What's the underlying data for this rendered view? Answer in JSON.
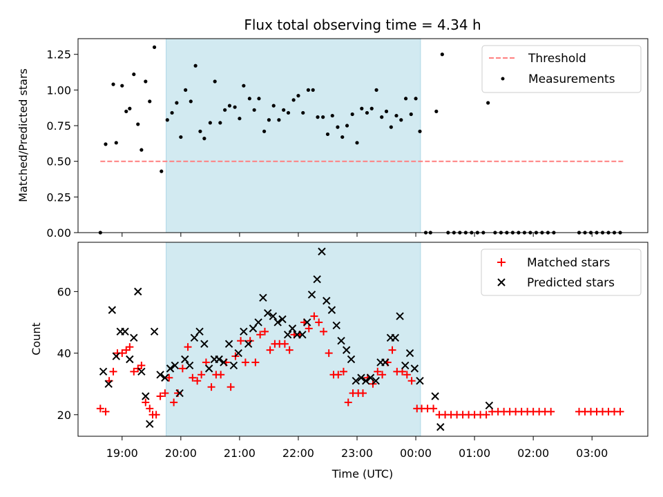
{
  "figure": {
    "title": "Flux total observing time = 4.34 h"
  },
  "colors": {
    "highlight": "#ADD8E6",
    "threshold": "#FF7F7F",
    "measurements": "#000000",
    "matched": "#FF0000",
    "predicted": "#000000"
  },
  "chart_data": [
    {
      "type": "scatter",
      "ylabel": "Matched/Predicted stars",
      "xlim": [
        18.25,
        27.95
      ],
      "ylim": [
        0,
        1.36
      ],
      "yticks": [
        0,
        0.25,
        0.5,
        0.75,
        1.0,
        1.25
      ],
      "ytick_labels": [
        "0.00",
        "0.25",
        "0.50",
        "0.75",
        "1.00",
        "1.25"
      ],
      "shaded_span": [
        19.75,
        24.08
      ],
      "threshold": {
        "name": "Threshold",
        "y": 0.5,
        "x": [
          18.63,
          27.55
        ]
      },
      "legend": {
        "placement": "top-right",
        "entries": [
          "Threshold",
          "Measurements"
        ]
      },
      "series": [
        {
          "name": "Measurements",
          "marker": "dot",
          "x": [
            18.63,
            18.72,
            18.85,
            18.9,
            19.0,
            19.07,
            19.13,
            19.2,
            19.27,
            19.33,
            19.4,
            19.47,
            19.55,
            19.67,
            19.77,
            19.85,
            19.93,
            20.0,
            20.08,
            20.17,
            20.25,
            20.33,
            20.4,
            20.5,
            20.58,
            20.67,
            20.75,
            20.83,
            20.92,
            21.0,
            21.07,
            21.17,
            21.25,
            21.33,
            21.42,
            21.5,
            21.58,
            21.67,
            21.75,
            21.83,
            21.92,
            22.0,
            22.08,
            22.17,
            22.25,
            22.33,
            22.42,
            22.5,
            22.58,
            22.67,
            22.75,
            22.83,
            22.92,
            23.0,
            23.08,
            23.17,
            23.25,
            23.33,
            23.42,
            23.5,
            23.58,
            23.67,
            23.75,
            23.83,
            23.92,
            24.0,
            24.07,
            24.17,
            24.25,
            24.35,
            24.45,
            24.55,
            24.65,
            24.75,
            24.85,
            24.95,
            25.05,
            25.15,
            25.23,
            25.35,
            25.45,
            25.55,
            25.65,
            25.75,
            25.85,
            25.95,
            26.05,
            26.15,
            26.25,
            26.35,
            26.78,
            26.88,
            26.98,
            27.08,
            27.18,
            27.28,
            27.38,
            27.48
          ],
          "y": [
            0.0,
            0.62,
            1.04,
            0.63,
            1.03,
            0.85,
            0.87,
            1.11,
            0.76,
            0.58,
            1.06,
            0.92,
            1.3,
            0.43,
            0.79,
            0.84,
            0.91,
            0.67,
            1.0,
            0.92,
            1.17,
            0.71,
            0.66,
            0.77,
            1.06,
            0.77,
            0.86,
            0.89,
            0.88,
            0.8,
            1.03,
            0.94,
            0.86,
            0.94,
            0.71,
            0.79,
            0.89,
            0.79,
            0.86,
            0.84,
            0.93,
            0.96,
            0.84,
            1.0,
            1.0,
            0.81,
            0.81,
            0.69,
            0.82,
            0.74,
            0.67,
            0.75,
            0.83,
            0.63,
            0.87,
            0.84,
            0.87,
            1.0,
            0.81,
            0.85,
            0.74,
            0.82,
            0.79,
            0.94,
            0.83,
            0.94,
            0.71,
            0.0,
            0.0,
            0.85,
            1.25,
            0.0,
            0.0,
            0.0,
            0.0,
            0.0,
            0.0,
            0.0,
            0.91,
            0.0,
            0.0,
            0.0,
            0.0,
            0.0,
            0.0,
            0.0,
            0.0,
            0.0,
            0.0,
            0.0,
            0.0,
            0.0,
            0.0,
            0.0,
            0.0,
            0.0,
            0.0,
            0.0
          ]
        }
      ]
    },
    {
      "type": "scatter",
      "xlabel": "Time (UTC)",
      "ylabel": "Count",
      "xlim": [
        18.25,
        27.95
      ],
      "ylim": [
        13,
        76
      ],
      "yticks": [
        20,
        40,
        60
      ],
      "ytick_labels": [
        "20",
        "40",
        "60"
      ],
      "xticks": [
        19,
        20,
        21,
        22,
        23,
        24,
        25,
        26,
        27
      ],
      "xtick_labels": [
        "19:00",
        "20:00",
        "21:00",
        "22:00",
        "23:00",
        "00:00",
        "01:00",
        "02:00",
        "03:00"
      ],
      "shaded_span": [
        19.75,
        24.08
      ],
      "legend": {
        "placement": "top-right",
        "entries": [
          "Matched stars",
          "Predicted stars"
        ]
      },
      "series": [
        {
          "name": "Matched stars",
          "marker": "plus",
          "x": [
            18.63,
            18.72,
            18.78,
            18.85,
            18.92,
            19.0,
            19.07,
            19.13,
            19.2,
            19.27,
            19.33,
            19.4,
            19.47,
            19.52,
            19.58,
            19.65,
            19.73,
            19.8,
            19.88,
            19.95,
            20.03,
            20.12,
            20.2,
            20.28,
            20.35,
            20.43,
            20.52,
            20.6,
            20.68,
            20.77,
            20.85,
            20.93,
            21.02,
            21.1,
            21.18,
            21.27,
            21.35,
            21.43,
            21.52,
            21.6,
            21.68,
            21.77,
            21.85,
            21.93,
            22.02,
            22.1,
            22.18,
            22.27,
            22.35,
            22.43,
            22.52,
            22.6,
            22.68,
            22.77,
            22.85,
            22.93,
            23.02,
            23.1,
            23.18,
            23.27,
            23.35,
            23.43,
            23.52,
            23.6,
            23.68,
            23.77,
            23.85,
            23.93,
            24.02,
            24.1,
            24.2,
            24.3,
            24.4,
            24.5,
            24.6,
            24.7,
            24.8,
            24.9,
            25.0,
            25.1,
            25.2,
            25.3,
            25.4,
            25.5,
            25.6,
            25.7,
            25.8,
            25.9,
            26.0,
            26.1,
            26.2,
            26.3,
            26.78,
            26.88,
            26.98,
            27.08,
            27.18,
            27.28,
            27.38,
            27.48
          ],
          "y": [
            22,
            21,
            31,
            34,
            40,
            40,
            41,
            42,
            34,
            35,
            36,
            24,
            22,
            20,
            20,
            26,
            27,
            32,
            24,
            27,
            35,
            42,
            32,
            31,
            33,
            37,
            29,
            33,
            33,
            37,
            29,
            39,
            44,
            37,
            44,
            37,
            46,
            47,
            41,
            43,
            43,
            43,
            41,
            46,
            46,
            50,
            48,
            52,
            50,
            47,
            40,
            33,
            33,
            34,
            24,
            27,
            27,
            27,
            32,
            30,
            34,
            33,
            37,
            41,
            34,
            34,
            33,
            31,
            22,
            22,
            22,
            22,
            20,
            20,
            20,
            20,
            20,
            20,
            20,
            20,
            20,
            21,
            21,
            21,
            21,
            21,
            21,
            21,
            21,
            21,
            21,
            21,
            21,
            21,
            21,
            21,
            21,
            21,
            21,
            21
          ]
        },
        {
          "name": "Predicted stars",
          "marker": "x",
          "x": [
            18.68,
            18.77,
            18.83,
            18.9,
            18.97,
            19.05,
            19.13,
            19.2,
            19.27,
            19.33,
            19.4,
            19.47,
            19.55,
            19.65,
            19.73,
            19.82,
            19.9,
            19.98,
            20.07,
            20.15,
            20.23,
            20.32,
            20.4,
            20.48,
            20.57,
            20.65,
            20.73,
            20.82,
            20.9,
            20.98,
            21.07,
            21.15,
            21.23,
            21.32,
            21.4,
            21.48,
            21.57,
            21.65,
            21.73,
            21.82,
            21.9,
            21.98,
            22.07,
            22.15,
            22.23,
            22.32,
            22.4,
            22.48,
            22.57,
            22.65,
            22.73,
            22.82,
            22.9,
            22.98,
            23.07,
            23.15,
            23.23,
            23.32,
            23.4,
            23.48,
            23.57,
            23.65,
            23.73,
            23.82,
            23.9,
            23.98,
            24.07,
            24.33,
            24.42,
            25.25
          ],
          "y": [
            34,
            30,
            54,
            39,
            47,
            47,
            38,
            45,
            60,
            34,
            26,
            17,
            47,
            33,
            32,
            35,
            36,
            27,
            38,
            36,
            45,
            47,
            43,
            35,
            38,
            38,
            37,
            43,
            36,
            40,
            47,
            43,
            48,
            50,
            58,
            53,
            52,
            50,
            51,
            46,
            48,
            46,
            46,
            50,
            59,
            64,
            73,
            57,
            54,
            49,
            44,
            41,
            38,
            31,
            32,
            31,
            32,
            31,
            37,
            37,
            45,
            45,
            52,
            36,
            40,
            35,
            31,
            26,
            16,
            23
          ]
        }
      ]
    }
  ]
}
